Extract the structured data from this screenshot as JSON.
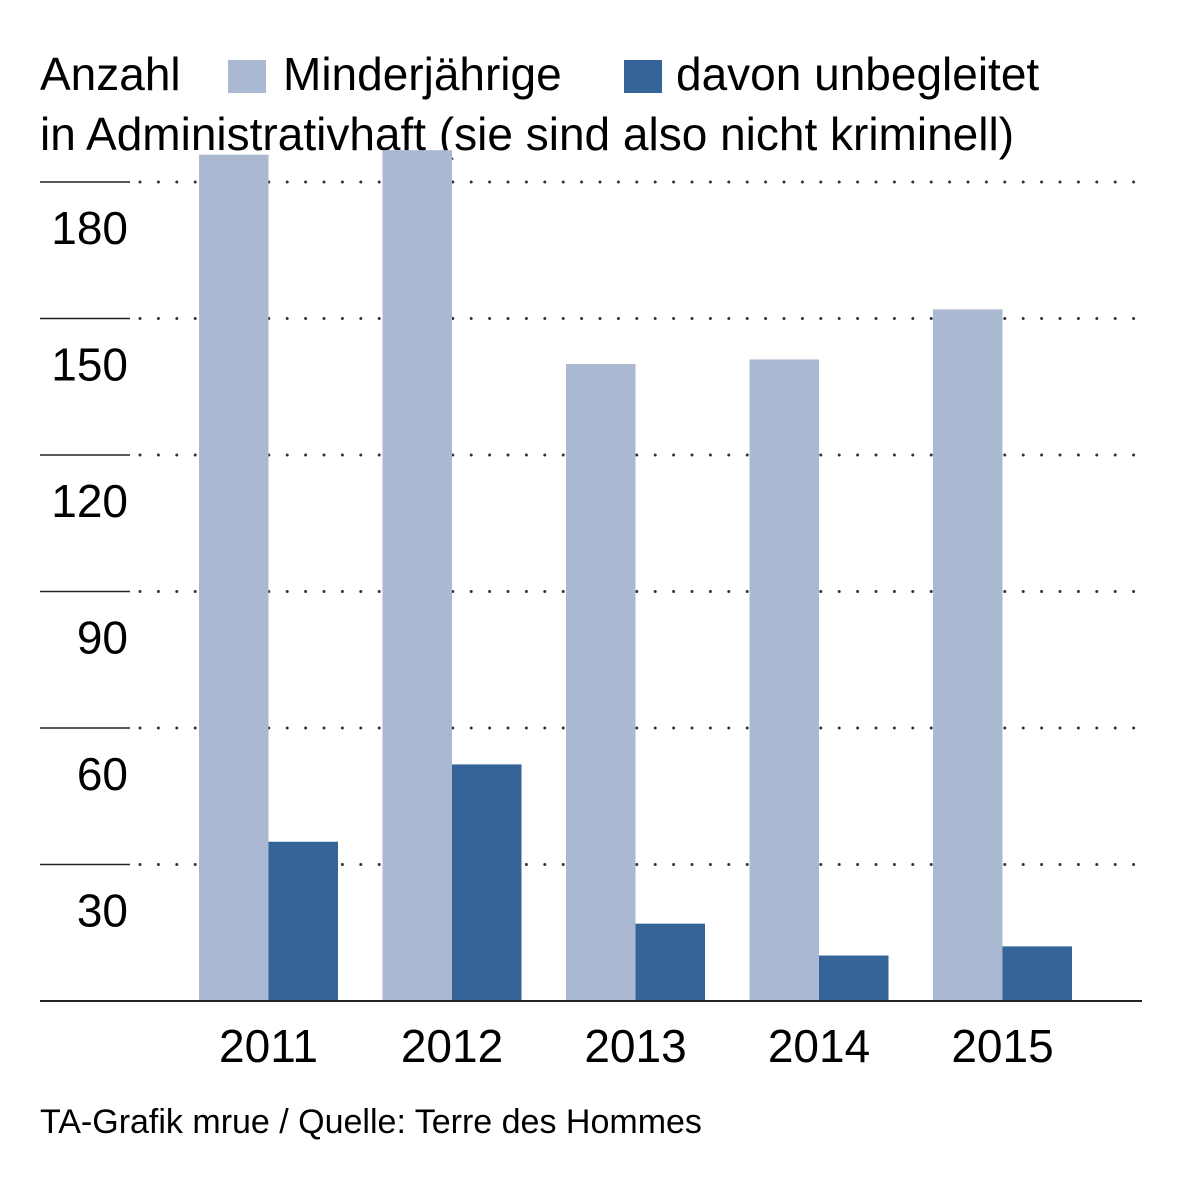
{
  "chart_data": {
    "type": "bar",
    "title": "Anzahl",
    "subtitle": "in Administrativhaft (sie sind also nicht kriminell)",
    "categories": [
      "2011",
      "2012",
      "2013",
      "2014",
      "2015"
    ],
    "series": [
      {
        "name": "Minderjährige",
        "values": [
          186,
          187,
          140,
          141,
          152
        ],
        "color": "#abb8d1"
      },
      {
        "name": "davon unbegleitet",
        "values": [
          35,
          52,
          17,
          10,
          12
        ],
        "color": "#356598"
      }
    ],
    "yticks": [
      30,
      60,
      90,
      120,
      150,
      180
    ],
    "ylim": [
      0,
      180
    ],
    "grid": true,
    "legend_position": "top",
    "source": "TA-Grafik mrue / Quelle: Terre des Hommes"
  }
}
